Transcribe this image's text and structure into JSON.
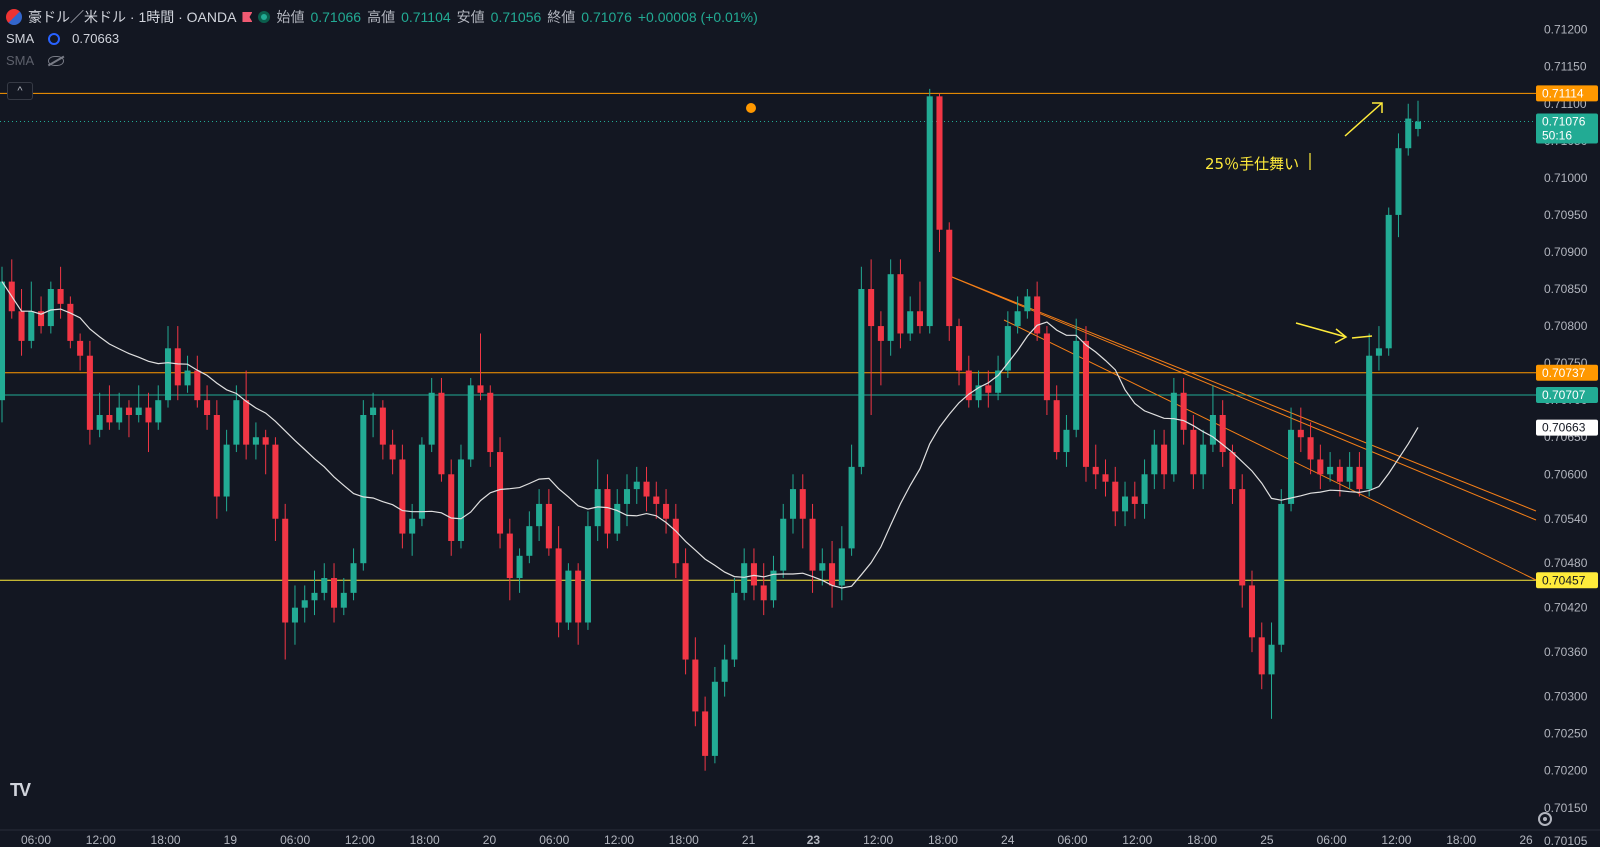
{
  "header": {
    "symbol": "豪ドル／米ドル · 1時間 · OANDA",
    "open_label": "始値",
    "open_value": "0.71066",
    "high_label": "高値",
    "high_value": "0.71104",
    "low_label": "安値",
    "low_value": "0.71056",
    "close_label": "終値",
    "close_value": "0.71076",
    "change": "+0.00008 (+0.01%)"
  },
  "indicators": [
    {
      "label": "SMA",
      "value": "0.70663"
    },
    {
      "label": "SMA",
      "value": ""
    }
  ],
  "annotation_text": "25％手仕舞い",
  "colors": {
    "up": "#22ab94",
    "down": "#f23645",
    "bg": "#131722",
    "sma": "#e0e0e0",
    "trend": "#f57f17"
  },
  "chart_data": {
    "type": "candlestick",
    "ylim": [
      0.7012,
      0.7124
    ],
    "y_ticks": [
      "0.71200",
      "0.71150",
      "0.71100",
      "0.71050",
      "0.71000",
      "0.70950",
      "0.70900",
      "0.70850",
      "0.70800",
      "0.70750",
      "0.70700",
      "0.70650",
      "0.70600",
      "0.70540",
      "0.70480",
      "0.70420",
      "0.70360",
      "0.70300",
      "0.70250",
      "0.70200",
      "0.70150",
      "0.70105"
    ],
    "x_labels": [
      "06:00",
      "12:00",
      "18:00",
      "19",
      "06:00",
      "12:00",
      "18:00",
      "20",
      "06:00",
      "12:00",
      "18:00",
      "21",
      "23",
      "12:00",
      "18:00",
      "24",
      "06:00",
      "12:00",
      "18:00",
      "25",
      "06:00",
      "12:00",
      "18:00",
      "26"
    ],
    "price_labels": [
      {
        "value": "0.71114",
        "color": "#ff9800"
      },
      {
        "value": "0.71076",
        "color": "#22ab94",
        "sub": "50:16"
      },
      {
        "value": "0.70737",
        "color": "#ff9800"
      },
      {
        "value": "0.70707",
        "color": "#22ab94"
      },
      {
        "value": "0.70663",
        "color": "#ffffff"
      },
      {
        "value": "0.70457",
        "color": "#ffeb3b"
      }
    ],
    "horizontal_lines": [
      {
        "price": 0.71114,
        "color": "#ff9800"
      },
      {
        "price": 0.70737,
        "color": "#ff9800"
      },
      {
        "price": 0.70707,
        "color": "#22ab94"
      },
      {
        "price": 0.70457,
        "color": "#ffeb3b"
      }
    ],
    "candles": [
      [
        0.707,
        0.7086,
        0.7088,
        0.7067
      ],
      [
        0.7086,
        0.7082,
        0.7089,
        0.7081
      ],
      [
        0.7082,
        0.7078,
        0.7085,
        0.7076
      ],
      [
        0.7078,
        0.7082,
        0.7086,
        0.7077
      ],
      [
        0.7082,
        0.708,
        0.7084,
        0.7079
      ],
      [
        0.708,
        0.7085,
        0.7086,
        0.7079
      ],
      [
        0.7085,
        0.7083,
        0.7088,
        0.7081
      ],
      [
        0.7083,
        0.7078,
        0.7084,
        0.7077
      ],
      [
        0.7078,
        0.7076,
        0.7079,
        0.7074
      ],
      [
        0.7076,
        0.7066,
        0.7078,
        0.7064
      ],
      [
        0.7066,
        0.7068,
        0.7071,
        0.7065
      ],
      [
        0.7068,
        0.7067,
        0.7072,
        0.7066
      ],
      [
        0.7067,
        0.7069,
        0.7071,
        0.7066
      ],
      [
        0.7069,
        0.7068,
        0.707,
        0.7065
      ],
      [
        0.7068,
        0.7069,
        0.7072,
        0.7067
      ],
      [
        0.7069,
        0.7067,
        0.7071,
        0.7063
      ],
      [
        0.7067,
        0.707,
        0.7072,
        0.7066
      ],
      [
        0.707,
        0.7077,
        0.708,
        0.7069
      ],
      [
        0.7077,
        0.7072,
        0.708,
        0.707
      ],
      [
        0.7072,
        0.7074,
        0.7076,
        0.7071
      ],
      [
        0.7074,
        0.707,
        0.7076,
        0.7069
      ],
      [
        0.707,
        0.7068,
        0.7072,
        0.7066
      ],
      [
        0.7068,
        0.7057,
        0.707,
        0.7054
      ],
      [
        0.7057,
        0.7064,
        0.7066,
        0.7055
      ],
      [
        0.7064,
        0.707,
        0.7072,
        0.7063
      ],
      [
        0.707,
        0.7064,
        0.7074,
        0.7062
      ],
      [
        0.7064,
        0.7065,
        0.7067,
        0.7062
      ],
      [
        0.7065,
        0.7064,
        0.7066,
        0.706
      ],
      [
        0.7064,
        0.7054,
        0.7065,
        0.7051
      ],
      [
        0.7054,
        0.704,
        0.7056,
        0.7035
      ],
      [
        0.704,
        0.7042,
        0.7045,
        0.7037
      ],
      [
        0.7042,
        0.7043,
        0.7045,
        0.704
      ],
      [
        0.7043,
        0.7044,
        0.7047,
        0.7041
      ],
      [
        0.7044,
        0.7046,
        0.7048,
        0.7043
      ],
      [
        0.7046,
        0.7042,
        0.7048,
        0.704
      ],
      [
        0.7042,
        0.7044,
        0.7046,
        0.7041
      ],
      [
        0.7044,
        0.7048,
        0.705,
        0.7043
      ],
      [
        0.7048,
        0.7068,
        0.707,
        0.7047
      ],
      [
        0.7068,
        0.7069,
        0.7071,
        0.7065
      ],
      [
        0.7069,
        0.7064,
        0.707,
        0.7062
      ],
      [
        0.7064,
        0.7062,
        0.7066,
        0.706
      ],
      [
        0.7062,
        0.7052,
        0.7064,
        0.705
      ],
      [
        0.7052,
        0.7054,
        0.7056,
        0.7049
      ],
      [
        0.7054,
        0.7064,
        0.7065,
        0.7053
      ],
      [
        0.7064,
        0.7071,
        0.7073,
        0.7063
      ],
      [
        0.7071,
        0.706,
        0.7073,
        0.7059
      ],
      [
        0.706,
        0.7051,
        0.7062,
        0.7049
      ],
      [
        0.7051,
        0.7062,
        0.7064,
        0.705
      ],
      [
        0.7062,
        0.7072,
        0.7073,
        0.7061
      ],
      [
        0.7072,
        0.7071,
        0.7079,
        0.707
      ],
      [
        0.7071,
        0.7063,
        0.7072,
        0.7061
      ],
      [
        0.7063,
        0.7052,
        0.7065,
        0.705
      ],
      [
        0.7052,
        0.7046,
        0.7054,
        0.7043
      ],
      [
        0.7046,
        0.7049,
        0.705,
        0.7044
      ],
      [
        0.7049,
        0.7053,
        0.7055,
        0.7048
      ],
      [
        0.7053,
        0.7056,
        0.7058,
        0.7051
      ],
      [
        0.7056,
        0.705,
        0.7058,
        0.7049
      ],
      [
        0.705,
        0.704,
        0.7053,
        0.7038
      ],
      [
        0.704,
        0.7047,
        0.7048,
        0.7039
      ],
      [
        0.7047,
        0.704,
        0.7048,
        0.7037
      ],
      [
        0.704,
        0.7053,
        0.7055,
        0.7039
      ],
      [
        0.7053,
        0.7058,
        0.7062,
        0.7051
      ],
      [
        0.7058,
        0.7052,
        0.706,
        0.705
      ],
      [
        0.7052,
        0.7056,
        0.7058,
        0.7051
      ],
      [
        0.7056,
        0.7058,
        0.706,
        0.7053
      ],
      [
        0.7058,
        0.7059,
        0.7061,
        0.7056
      ],
      [
        0.7059,
        0.7057,
        0.7061,
        0.7055
      ],
      [
        0.7057,
        0.7056,
        0.7059,
        0.7054
      ],
      [
        0.7056,
        0.7054,
        0.7058,
        0.7052
      ],
      [
        0.7054,
        0.7048,
        0.7056,
        0.7046
      ],
      [
        0.7048,
        0.7035,
        0.705,
        0.7033
      ],
      [
        0.7035,
        0.7028,
        0.7038,
        0.7026
      ],
      [
        0.7028,
        0.7022,
        0.703,
        0.702
      ],
      [
        0.7022,
        0.7032,
        0.7034,
        0.7021
      ],
      [
        0.7032,
        0.7035,
        0.7037,
        0.703
      ],
      [
        0.7035,
        0.7044,
        0.7046,
        0.7034
      ],
      [
        0.7044,
        0.7048,
        0.705,
        0.7043
      ],
      [
        0.7048,
        0.7045,
        0.705,
        0.7043
      ],
      [
        0.7045,
        0.7043,
        0.7048,
        0.7041
      ],
      [
        0.7043,
        0.7047,
        0.7049,
        0.7042
      ],
      [
        0.7047,
        0.7054,
        0.7056,
        0.7046
      ],
      [
        0.7054,
        0.7058,
        0.706,
        0.7052
      ],
      [
        0.7058,
        0.7054,
        0.706,
        0.705
      ],
      [
        0.7054,
        0.7047,
        0.7056,
        0.7044
      ],
      [
        0.7047,
        0.7048,
        0.705,
        0.7045
      ],
      [
        0.7048,
        0.7045,
        0.7051,
        0.7042
      ],
      [
        0.7045,
        0.705,
        0.7053,
        0.7043
      ],
      [
        0.705,
        0.7061,
        0.7064,
        0.7049
      ],
      [
        0.7061,
        0.7085,
        0.7088,
        0.706
      ],
      [
        0.7085,
        0.708,
        0.7089,
        0.7068
      ],
      [
        0.708,
        0.7078,
        0.7082,
        0.7072
      ],
      [
        0.7078,
        0.7087,
        0.7089,
        0.7076
      ],
      [
        0.7087,
        0.7079,
        0.7089,
        0.7077
      ],
      [
        0.7079,
        0.7082,
        0.7084,
        0.7078
      ],
      [
        0.7082,
        0.708,
        0.7086,
        0.7079
      ],
      [
        0.708,
        0.7111,
        0.7112,
        0.7079
      ],
      [
        0.7111,
        0.7093,
        0.71114,
        0.709
      ],
      [
        0.7093,
        0.708,
        0.7094,
        0.7078
      ],
      [
        0.708,
        0.7074,
        0.7081,
        0.7072
      ],
      [
        0.7074,
        0.707,
        0.7076,
        0.7069
      ],
      [
        0.707,
        0.7072,
        0.7074,
        0.7069
      ],
      [
        0.7072,
        0.7071,
        0.7074,
        0.7069
      ],
      [
        0.7071,
        0.7074,
        0.7076,
        0.707
      ],
      [
        0.7074,
        0.708,
        0.7082,
        0.7073
      ],
      [
        0.708,
        0.7082,
        0.7084,
        0.7079
      ],
      [
        0.7082,
        0.7084,
        0.7085,
        0.7081
      ],
      [
        0.7084,
        0.7079,
        0.7086,
        0.7078
      ],
      [
        0.7079,
        0.707,
        0.708,
        0.7068
      ],
      [
        0.707,
        0.7063,
        0.7072,
        0.7062
      ],
      [
        0.7063,
        0.7066,
        0.7068,
        0.7061
      ],
      [
        0.7066,
        0.7078,
        0.7081,
        0.7065
      ],
      [
        0.7078,
        0.7061,
        0.708,
        0.7059
      ],
      [
        0.7061,
        0.706,
        0.7064,
        0.7058
      ],
      [
        0.706,
        0.7059,
        0.7062,
        0.7057
      ],
      [
        0.7059,
        0.7055,
        0.7061,
        0.7053
      ],
      [
        0.7055,
        0.7057,
        0.7059,
        0.7053
      ],
      [
        0.7057,
        0.7056,
        0.7059,
        0.7054
      ],
      [
        0.7056,
        0.706,
        0.7062,
        0.7054
      ],
      [
        0.706,
        0.7064,
        0.7066,
        0.7058
      ],
      [
        0.7064,
        0.706,
        0.7066,
        0.7058
      ],
      [
        0.706,
        0.7071,
        0.7073,
        0.7059
      ],
      [
        0.7071,
        0.7066,
        0.7073,
        0.7064
      ],
      [
        0.7066,
        0.706,
        0.7068,
        0.7058
      ],
      [
        0.706,
        0.7064,
        0.7066,
        0.7058
      ],
      [
        0.7064,
        0.7068,
        0.7072,
        0.7063
      ],
      [
        0.7068,
        0.7063,
        0.707,
        0.7061
      ],
      [
        0.7063,
        0.7058,
        0.7064,
        0.7056
      ],
      [
        0.7058,
        0.7045,
        0.706,
        0.7042
      ],
      [
        0.7045,
        0.7038,
        0.7047,
        0.7036
      ],
      [
        0.7038,
        0.7033,
        0.704,
        0.7031
      ],
      [
        0.7033,
        0.7037,
        0.704,
        0.7027
      ],
      [
        0.7037,
        0.7056,
        0.7058,
        0.7036
      ],
      [
        0.7056,
        0.7066,
        0.7069,
        0.7055
      ],
      [
        0.7066,
        0.7065,
        0.7069,
        0.7063
      ],
      [
        0.7065,
        0.7062,
        0.7067,
        0.706
      ],
      [
        0.7062,
        0.706,
        0.7064,
        0.7058
      ],
      [
        0.706,
        0.7061,
        0.7063,
        0.7059
      ],
      [
        0.7061,
        0.7059,
        0.7062,
        0.7057
      ],
      [
        0.7059,
        0.7061,
        0.7063,
        0.7058
      ],
      [
        0.7061,
        0.7058,
        0.7063,
        0.7057
      ],
      [
        0.7058,
        0.7076,
        0.7079,
        0.7057
      ],
      [
        0.7076,
        0.7077,
        0.708,
        0.7074
      ],
      [
        0.7077,
        0.7095,
        0.7096,
        0.7076
      ],
      [
        0.7095,
        0.7104,
        0.7106,
        0.7092
      ],
      [
        0.7104,
        0.7108,
        0.711,
        0.7103
      ],
      [
        0.71066,
        0.71076,
        0.71104,
        0.71056
      ]
    ]
  }
}
